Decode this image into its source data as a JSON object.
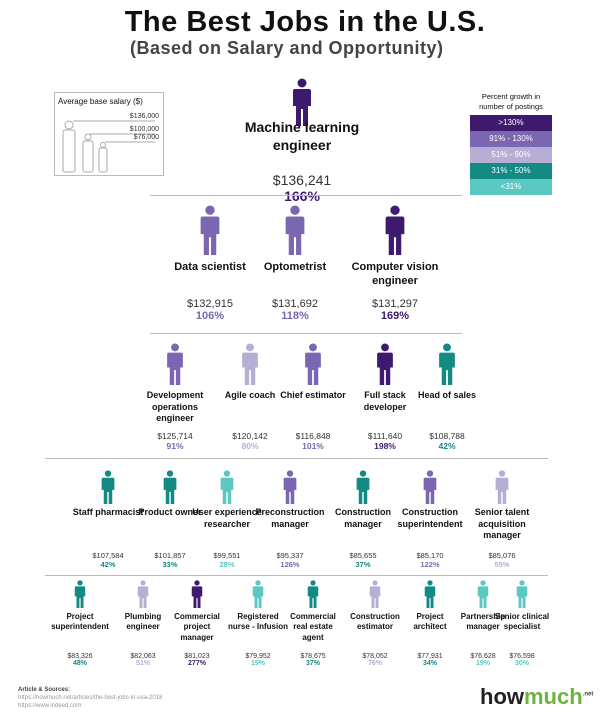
{
  "title": "The Best Jobs in the U.S.",
  "subtitle": "(Based on Salary and Opportunity)",
  "salary_legend": {
    "title": "Average base salary ($)",
    "values": [
      "$136,000",
      "$100,000",
      "$76,000"
    ]
  },
  "growth_legend": {
    "title": "Percent growth in number of postings",
    "items": [
      {
        "label": ">130%",
        "color": "#3d1a6e"
      },
      {
        "label": "91% - 130%",
        "color": "#7b66b1"
      },
      {
        "label": "51% - 90%",
        "color": "#b7aed6"
      },
      {
        "label": "31% - 50%",
        "color": "#138a84"
      },
      {
        "label": "<31%",
        "color": "#5cc8c4"
      }
    ]
  },
  "rows": [
    [
      {
        "name": "Machine learning engineer",
        "salary": "$136,241",
        "growth": "166%",
        "tier": 0
      }
    ],
    [
      {
        "name": "Data scientist",
        "salary": "$132,915",
        "growth": "106%",
        "tier": 1
      },
      {
        "name": "Optometrist",
        "salary": "$131,692",
        "growth": "118%",
        "tier": 1
      },
      {
        "name": "Computer vision engineer",
        "salary": "$131,297",
        "growth": "169%",
        "tier": 0
      }
    ],
    [
      {
        "name": "Development operations engineer",
        "salary": "$125,714",
        "growth": "91%",
        "tier": 1
      },
      {
        "name": "Agile coach",
        "salary": "$120,142",
        "growth": "80%",
        "tier": 2
      },
      {
        "name": "Chief estimator",
        "salary": "$116,848",
        "growth": "101%",
        "tier": 1
      },
      {
        "name": "Full stack developer",
        "salary": "$111,640",
        "growth": "198%",
        "tier": 0
      },
      {
        "name": "Head of sales",
        "salary": "$108,788",
        "growth": "42%",
        "tier": 3
      }
    ],
    [
      {
        "name": "Staff pharmacist",
        "salary": "$107,584",
        "growth": "42%",
        "tier": 3
      },
      {
        "name": "Product owner",
        "salary": "$101,857",
        "growth": "33%",
        "tier": 3
      },
      {
        "name": "User experience researcher",
        "salary": "$99,551",
        "growth": "28%",
        "tier": 4
      },
      {
        "name": "Preconstruction manager",
        "salary": "$95,337",
        "growth": "126%",
        "tier": 1
      },
      {
        "name": "Construction manager",
        "salary": "$85,655",
        "growth": "37%",
        "tier": 3
      },
      {
        "name": "Construction superintendent",
        "salary": "$85,170",
        "growth": "122%",
        "tier": 1
      },
      {
        "name": "Senior talent acquisition manager",
        "salary": "$85,076",
        "growth": "55%",
        "tier": 2
      }
    ],
    [
      {
        "name": "Project superintendent",
        "salary": "$83,326",
        "growth": "48%",
        "tier": 3
      },
      {
        "name": "Plumbing engineer",
        "salary": "$82,063",
        "growth": "51%",
        "tier": 2
      },
      {
        "name": "Commercial project manager",
        "salary": "$81,023",
        "growth": "277%",
        "tier": 0
      },
      {
        "name": "Registered nurse - Infusion",
        "salary": "$79,952",
        "growth": "19%",
        "tier": 4
      },
      {
        "name": "Commercial real estate agent",
        "salary": "$78,675",
        "growth": "37%",
        "tier": 3
      },
      {
        "name": "Construction estimator",
        "salary": "$78,052",
        "growth": "76%",
        "tier": 2
      },
      {
        "name": "Project architect",
        "salary": "$77,931",
        "growth": "34%",
        "tier": 3
      },
      {
        "name": "Partnership manager",
        "salary": "$76,628",
        "growth": "19%",
        "tier": 4
      },
      {
        "name": "Senior clinical specialist",
        "salary": "$76,598",
        "growth": "30%",
        "tier": 4
      }
    ]
  ],
  "sources": {
    "title": "Article & Sources:",
    "lines": [
      "https://howmuch.net/articles/the-best-jobs-in-usa-2018",
      "https://www.indeed.com"
    ]
  },
  "logo": {
    "part1": "how",
    "part2": "much",
    "suffix": ".net"
  }
}
